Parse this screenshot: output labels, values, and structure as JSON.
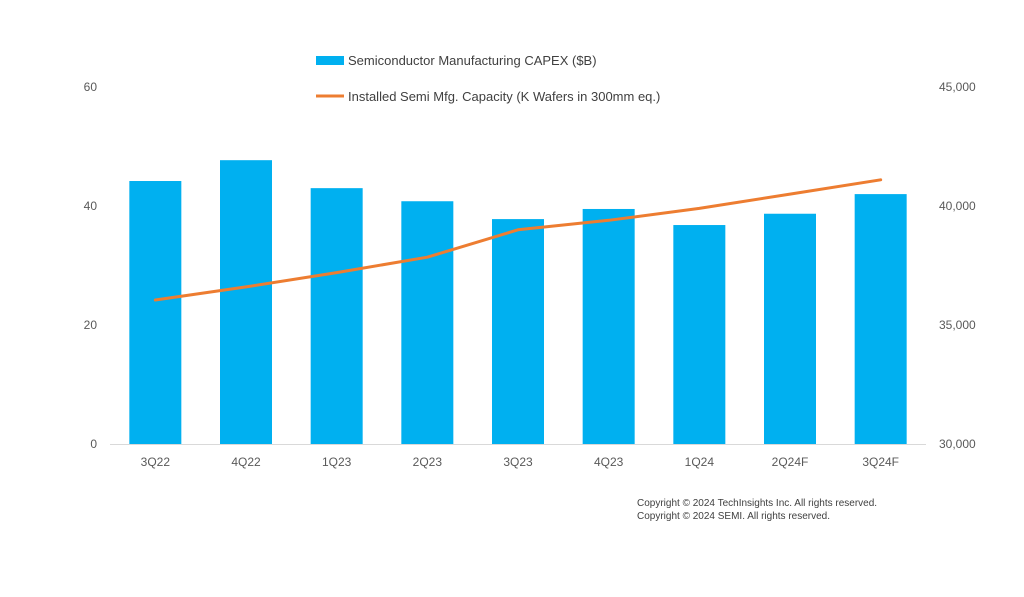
{
  "chart_data": {
    "type": "bar",
    "title": "",
    "categories": [
      "3Q22",
      "4Q22",
      "1Q23",
      "2Q23",
      "3Q23",
      "4Q23",
      "1Q24",
      "2Q24F",
      "3Q24F"
    ],
    "series": [
      {
        "name": "Semiconductor Manufacturing CAPEX ($B)",
        "type": "bar",
        "axis": "left",
        "color": "#00B0F0",
        "values": [
          44.2,
          47.7,
          43.0,
          40.8,
          37.8,
          39.5,
          36.8,
          38.7,
          42.0
        ]
      },
      {
        "name": "Installed Semi Mfg. Capacity (K Wafers in 300mm eq.)",
        "type": "line",
        "axis": "right",
        "color": "#ED7D31",
        "values": [
          36050,
          36600,
          37200,
          37850,
          39000,
          39400,
          39900,
          40500,
          41100
        ]
      }
    ],
    "left_axis": {
      "label": "",
      "ylim": [
        0,
        60
      ],
      "ticks": [
        0,
        20,
        40,
        60
      ],
      "tick_labels": [
        "0",
        "20",
        "40",
        "60"
      ]
    },
    "right_axis": {
      "label": "",
      "ylim": [
        30000,
        45000
      ],
      "ticks": [
        30000,
        35000,
        40000,
        45000
      ],
      "tick_labels": [
        "30,000",
        "35,000",
        "40,000",
        "45,000"
      ]
    },
    "xlabel": "",
    "grid": false,
    "legend_position": "top-center"
  },
  "copyright": [
    "Copyright © 2024 TechInsights Inc.  All rights reserved.",
    "Copyright © 2024 SEMI.  All rights reserved."
  ]
}
